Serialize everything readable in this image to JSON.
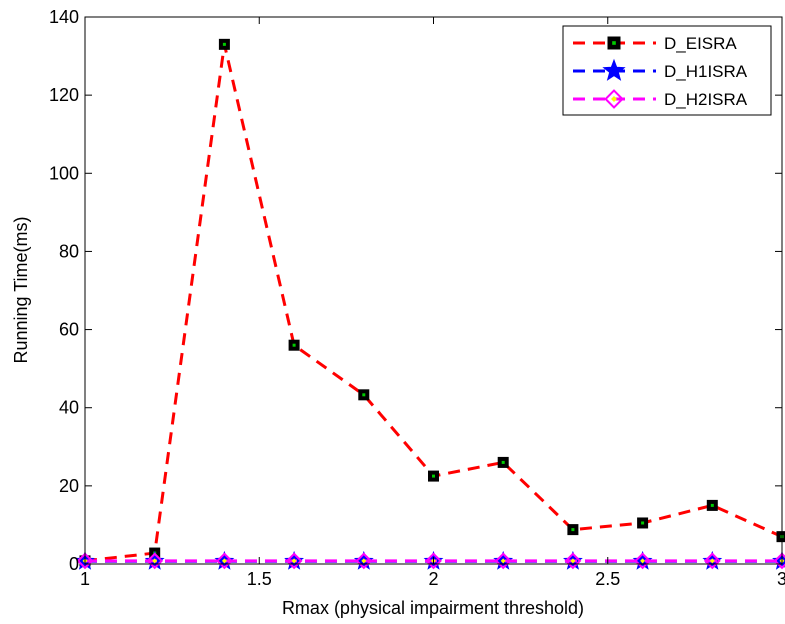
{
  "chart_data": {
    "type": "line",
    "title": "",
    "xlabel": "Rmax (physical impairment threshold)",
    "ylabel": "Running Time(ms)",
    "xlim": [
      1,
      3
    ],
    "ylim": [
      0,
      140
    ],
    "xticks": [
      1,
      1.5,
      2,
      2.5,
      3
    ],
    "xtick_labels": [
      "1",
      "1.5",
      "2",
      "2.5",
      "3"
    ],
    "yticks": [
      0,
      20,
      40,
      60,
      80,
      100,
      120,
      140
    ],
    "ytick_labels": [
      "0",
      "20",
      "40",
      "60",
      "80",
      "100",
      "120",
      "140"
    ],
    "grid": false,
    "legend_position": "top-right",
    "x": [
      1.0,
      1.2,
      1.4,
      1.6,
      1.8,
      2.0,
      2.2,
      2.4,
      2.6,
      2.8,
      3.0
    ],
    "series": [
      {
        "name": "D_EISRA",
        "values": [
          0.8,
          2.8,
          133,
          56,
          43.3,
          22.5,
          26,
          8.8,
          10.5,
          15,
          7
        ],
        "color": "#ff0000",
        "line_style": "dashed",
        "marker": "square",
        "marker_edge": "#000000",
        "marker_face": "#00cc00"
      },
      {
        "name": "D_H1ISRA",
        "values": [
          0.7,
          0.7,
          0.7,
          0.7,
          0.7,
          0.7,
          0.7,
          0.7,
          0.7,
          0.7,
          0.7
        ],
        "color": "#0000ff",
        "line_style": "dashed",
        "marker": "star",
        "marker_face": "#0000ff"
      },
      {
        "name": "D_H2ISRA",
        "values": [
          0.8,
          0.8,
          0.8,
          0.8,
          0.8,
          0.8,
          0.8,
          0.8,
          0.8,
          0.8,
          0.8
        ],
        "color": "#ff00ff",
        "line_style": "dashed",
        "marker": "diamond",
        "marker_face": "#ffff00"
      }
    ]
  }
}
